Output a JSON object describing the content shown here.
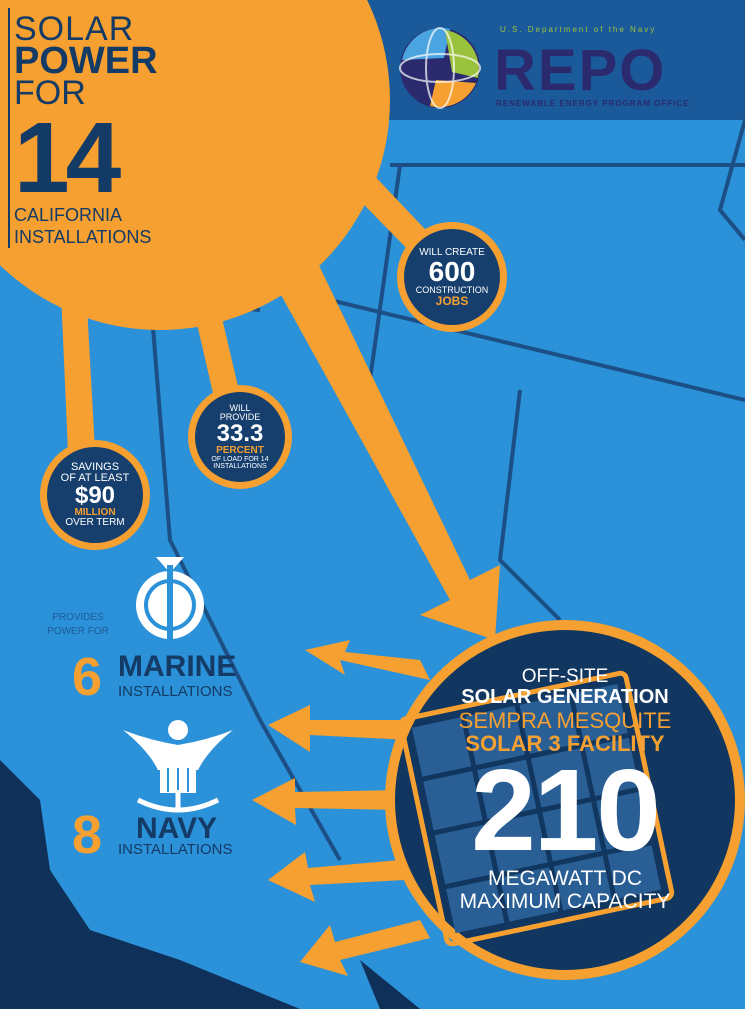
{
  "headline": {
    "solar": "SOLAR",
    "power": "POWER",
    "for": "FOR",
    "count": "14",
    "line1": "CALIFORNIA",
    "line2": "INSTALLATIONS"
  },
  "logo": {
    "tagline": "U.S. Department of the Navy",
    "name": "REPO",
    "subtitle": "RENEWABLE ENERGY PROGRAM OFFICE"
  },
  "stats": {
    "jobs": {
      "line1": "WILL CREATE",
      "value": "600",
      "line2": "CONSTRUCTION",
      "line3": "JOBS"
    },
    "percent": {
      "line1": "WILL",
      "line2": "PROVIDE",
      "value": "33.3",
      "line3": "PERCENT",
      "line4": "OF LOAD FOR 14",
      "line5": "INSTALLATIONS"
    },
    "savings": {
      "line1": "SAVINGS",
      "line2": "OF AT LEAST",
      "value": "$90",
      "line3": "MILLION",
      "line4": "OVER TERM"
    }
  },
  "marine": {
    "provides1": "PROVIDES",
    "provides2": "POWER FOR",
    "count": "6",
    "label": "MARINE",
    "sub": "INSTALLATIONS"
  },
  "navy": {
    "count": "8",
    "label": "NAVY",
    "sub": "INSTALLATIONS"
  },
  "facility": {
    "line1": "OFF-SITE",
    "line2": "SOLAR GENERATION",
    "line3": "SEMPRA MESQUITE",
    "line4": "SOLAR 3 FACILITY",
    "value": "210",
    "line5": "MEGAWATT DC",
    "line6": "MAXIMUM CAPACITY"
  },
  "colors": {
    "orange": "#f5a030",
    "navy": "#143a66",
    "sky": "#2b91d8",
    "dark": "#0f3159"
  }
}
